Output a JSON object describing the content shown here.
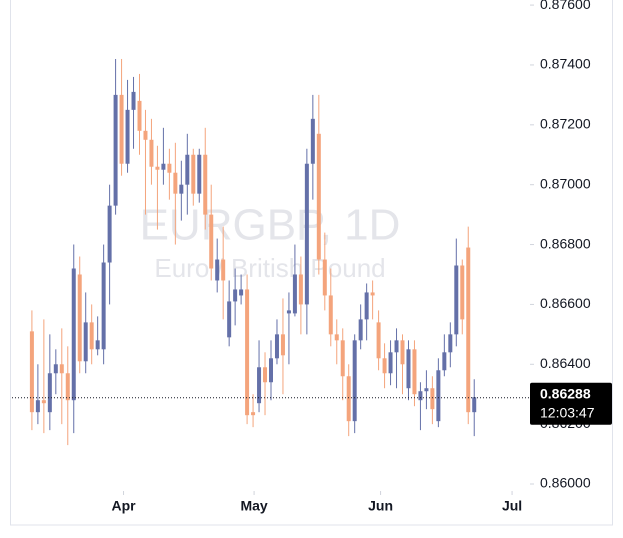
{
  "chart_data": {
    "type": "candlestick",
    "title": "EURGBP, 1D",
    "subtitle": "Euro / British Pound",
    "up_color": "#6470a8",
    "down_color": "#f4a47c",
    "open": [
      0.8651,
      0.8624,
      0.8628,
      0.8624,
      0.8637,
      0.864,
      0.8637,
      0.8628,
      0.867,
      0.8641,
      0.8654,
      0.8645,
      0.8645,
      0.8674,
      0.8693,
      0.873,
      0.8707,
      0.8725,
      0.8728,
      0.8718,
      0.8715,
      0.8706,
      0.8705,
      0.8707,
      0.8704,
      0.8697,
      0.87,
      0.871,
      0.8697,
      0.871,
      0.869,
      0.8668,
      0.8675,
      0.8649,
      0.8661,
      0.8663,
      0.8665,
      0.8624,
      0.8627,
      0.8639,
      0.8634,
      0.8642,
      0.865,
      0.8657,
      0.8657,
      0.867,
      0.866,
      0.8707,
      0.8717,
      0.8675,
      0.8663,
      0.865,
      0.8648,
      0.8636,
      0.8621,
      0.8648,
      0.8655,
      0.8664,
      0.8654,
      0.8642,
      0.8637,
      0.8644,
      0.8648,
      0.8632,
      0.8645,
      0.8628,
      0.8631,
      0.8632,
      0.8621,
      0.8638,
      0.8644,
      0.865,
      0.8673,
      0.8679,
      0.8624
    ],
    "high": [
      0.8658,
      0.864,
      0.8655,
      0.865,
      0.8645,
      0.8652,
      0.8646,
      0.868,
      0.8676,
      0.8664,
      0.866,
      0.8656,
      0.868,
      0.87,
      0.8742,
      0.8742,
      0.8735,
      0.8736,
      0.8737,
      0.8725,
      0.8722,
      0.8713,
      0.8719,
      0.8712,
      0.8714,
      0.8708,
      0.8717,
      0.8712,
      0.8712,
      0.8719,
      0.87,
      0.8682,
      0.8686,
      0.8668,
      0.8672,
      0.867,
      0.867,
      0.863,
      0.8648,
      0.8644,
      0.8648,
      0.8655,
      0.8662,
      0.8664,
      0.868,
      0.8676,
      0.8712,
      0.873,
      0.873,
      0.8684,
      0.8672,
      0.8655,
      0.8652,
      0.864,
      0.865,
      0.866,
      0.8667,
      0.8668,
      0.8658,
      0.8647,
      0.8648,
      0.8652,
      0.865,
      0.8648,
      0.8648,
      0.8634,
      0.8638,
      0.8636,
      0.8642,
      0.865,
      0.8654,
      0.8682,
      0.8675,
      0.8686,
      0.8635
    ],
    "low": [
      0.8618,
      0.862,
      0.8617,
      0.8618,
      0.863,
      0.862,
      0.8613,
      0.8617,
      0.8637,
      0.8637,
      0.864,
      0.8643,
      0.864,
      0.866,
      0.869,
      0.8703,
      0.8704,
      0.8712,
      0.871,
      0.869,
      0.87,
      0.8685,
      0.87,
      0.8695,
      0.868,
      0.8688,
      0.869,
      0.8693,
      0.8694,
      0.8685,
      0.8668,
      0.8664,
      0.8655,
      0.8646,
      0.8653,
      0.866,
      0.862,
      0.8619,
      0.8624,
      0.8623,
      0.8628,
      0.864,
      0.863,
      0.864,
      0.8656,
      0.865,
      0.865,
      0.8695,
      0.867,
      0.8658,
      0.8646,
      0.864,
      0.8628,
      0.8616,
      0.8617,
      0.8645,
      0.8648,
      0.8655,
      0.8638,
      0.8632,
      0.8633,
      0.8632,
      0.863,
      0.8628,
      0.8626,
      0.8618,
      0.8625,
      0.862,
      0.8619,
      0.8636,
      0.8639,
      0.8646,
      0.865,
      0.862,
      0.8616
    ],
    "close": [
      0.8624,
      0.8628,
      0.8627,
      0.8637,
      0.864,
      0.8637,
      0.8628,
      0.8672,
      0.8641,
      0.8654,
      0.8645,
      0.8648,
      0.8674,
      0.8693,
      0.873,
      0.8707,
      0.8725,
      0.8731,
      0.8718,
      0.8715,
      0.8706,
      0.8705,
      0.8707,
      0.8704,
      0.8697,
      0.87,
      0.871,
      0.8697,
      0.871,
      0.869,
      0.8672,
      0.8675,
      0.8668,
      0.8661,
      0.8665,
      0.8665,
      0.8623,
      0.8623,
      0.8639,
      0.8634,
      0.8642,
      0.865,
      0.8643,
      0.8658,
      0.867,
      0.866,
      0.8707,
      0.8722,
      0.8675,
      0.8663,
      0.865,
      0.8648,
      0.8636,
      0.8621,
      0.8648,
      0.8655,
      0.8664,
      0.8663,
      0.8642,
      0.8637,
      0.8644,
      0.8648,
      0.864,
      0.8645,
      0.863,
      0.8631,
      0.8632,
      0.8625,
      0.8638,
      0.8644,
      0.865,
      0.8673,
      0.8655,
      0.8624,
      0.8629
    ],
    "ylim": [
      0.8598,
      0.87617
    ],
    "yticks": [
      {
        "value": 0.86,
        "label": "0.86000"
      },
      {
        "value": 0.862,
        "label": "0.86200"
      },
      {
        "value": 0.864,
        "label": "0.86400"
      },
      {
        "value": 0.866,
        "label": "0.86600"
      },
      {
        "value": 0.868,
        "label": "0.86800"
      },
      {
        "value": 0.87,
        "label": "0.87000"
      },
      {
        "value": 0.872,
        "label": "0.87200"
      },
      {
        "value": 0.874,
        "label": "0.87400"
      },
      {
        "value": 0.876,
        "label": "0.87600"
      }
    ],
    "xlim": [
      -3.33,
      83.33
    ],
    "xticks": [
      {
        "value": 15.33,
        "label": "Apr"
      },
      {
        "value": 37.17,
        "label": "May"
      },
      {
        "value": 58.33,
        "label": "Jun"
      },
      {
        "value": 80.33,
        "label": "Jul"
      }
    ],
    "last_price": 0.86288,
    "countdown": "12:03:47"
  }
}
